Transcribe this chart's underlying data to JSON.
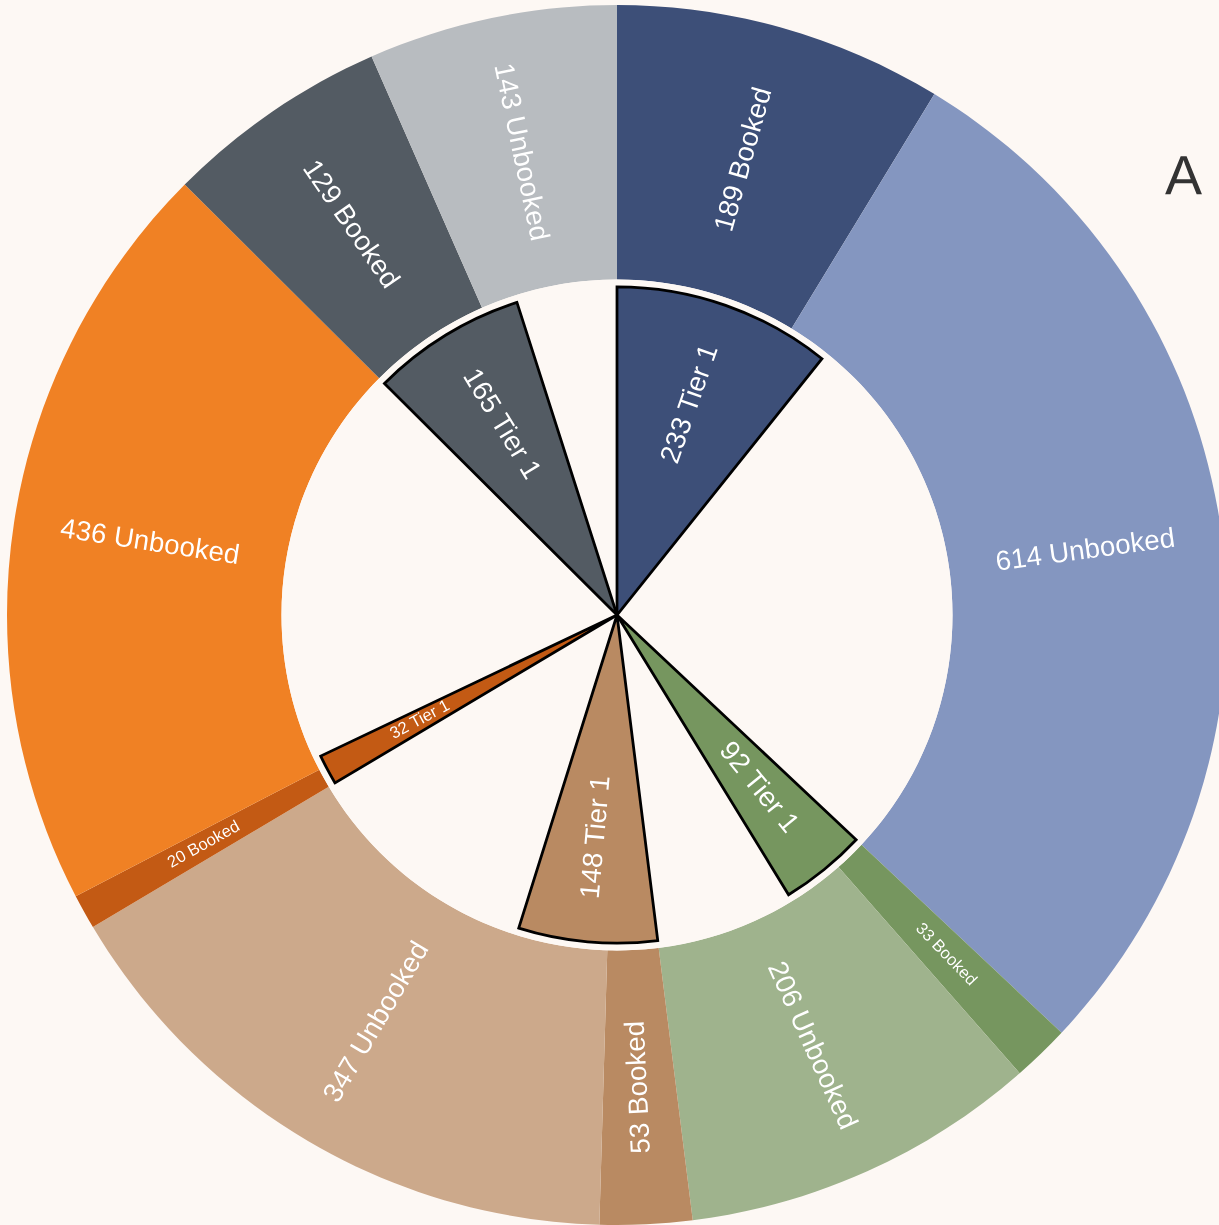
{
  "chart_data": {
    "type": "donut",
    "title": "A",
    "series": [
      {
        "type": "donut",
        "values": [
          189,
          614,
          33,
          206,
          53,
          347,
          20,
          436,
          129,
          143
        ],
        "value_labels": [
          "189 Booked",
          "614 Unbooked",
          "33 Booked",
          "206 Unbooked",
          "53 Booked",
          "347 Unbooked",
          "20 Booked",
          "436 Unbooked",
          "129 Booked",
          "143 Unbooked"
        ],
        "colors": [
          "#3d4f78",
          "#8496c0",
          "#76965f",
          "#9fb38d",
          "#b98a62",
          "#cca98b",
          "#c35a14",
          "#f08124",
          "#535b63",
          "#b8bcc0"
        ]
      },
      {
        "type": "pie",
        "values": [
          233,
          null,
          92,
          null,
          148,
          null,
          32,
          null,
          165,
          null
        ],
        "value_labels": [
          "233 Tier 1",
          null,
          "92 Tier 1",
          null,
          "148 Tier 1",
          null,
          "32 Tier 1",
          null,
          "165 Tier 1",
          null
        ],
        "colors": [
          "#3d4f78",
          null,
          "#76965f",
          null,
          "#b98a62",
          null,
          "#c35a14",
          null,
          "#535b63",
          null
        ]
      }
    ]
  }
}
